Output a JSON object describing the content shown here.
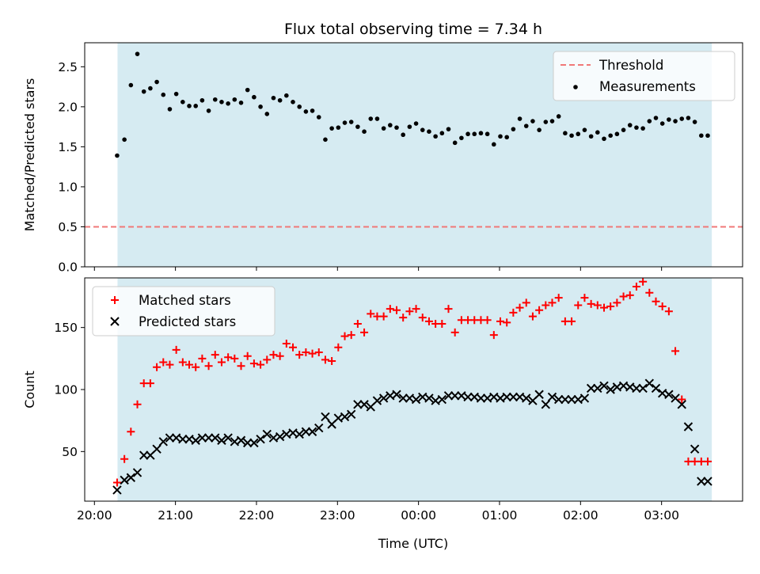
{
  "chart_data": {
    "type": "scatter",
    "title": "Flux total observing time = 7.34 h",
    "xlabel": "Time (UTC)",
    "x_unit": "hours since 20:00 UTC",
    "xlim": [
      -0.12,
      8.0
    ],
    "xticks": [
      {
        "value": 0,
        "label": "20:00"
      },
      {
        "value": 1,
        "label": "21:00"
      },
      {
        "value": 2,
        "label": "22:00"
      },
      {
        "value": 3,
        "label": "23:00"
      },
      {
        "value": 4,
        "label": "00:00"
      },
      {
        "value": 5,
        "label": "01:00"
      },
      {
        "value": 6,
        "label": "02:00"
      },
      {
        "value": 7,
        "label": "03:00"
      }
    ],
    "observing_window": {
      "start": 0.285,
      "end": 7.62,
      "color": "#add8e6"
    },
    "x": [
      0.28,
      0.37,
      0.45,
      0.53,
      0.61,
      0.69,
      0.77,
      0.85,
      0.93,
      1.01,
      1.09,
      1.17,
      1.25,
      1.33,
      1.41,
      1.49,
      1.57,
      1.65,
      1.73,
      1.81,
      1.89,
      1.97,
      2.05,
      2.13,
      2.21,
      2.29,
      2.37,
      2.45,
      2.53,
      2.61,
      2.69,
      2.77,
      2.85,
      2.93,
      3.01,
      3.09,
      3.17,
      3.25,
      3.33,
      3.41,
      3.49,
      3.57,
      3.65,
      3.73,
      3.81,
      3.89,
      3.97,
      4.05,
      4.13,
      4.21,
      4.29,
      4.37,
      4.45,
      4.53,
      4.61,
      4.69,
      4.77,
      4.85,
      4.93,
      5.01,
      5.09,
      5.17,
      5.25,
      5.33,
      5.41,
      5.49,
      5.57,
      5.65,
      5.73,
      5.81,
      5.89,
      5.97,
      6.05,
      6.13,
      6.21,
      6.29,
      6.37,
      6.45,
      6.53,
      6.61,
      6.69,
      6.77,
      6.85,
      6.93,
      7.01,
      7.09,
      7.17,
      7.25,
      7.33,
      7.41,
      7.49,
      7.57
    ],
    "panels": [
      {
        "id": "ratio",
        "ylabel": "Matched/Predicted stars",
        "ylim": [
          0,
          2.8
        ],
        "yticks": [
          {
            "value": 0,
            "label": "0.0"
          },
          {
            "value": 0.5,
            "label": "0.5"
          },
          {
            "value": 1,
            "label": "1.0"
          },
          {
            "value": 1.5,
            "label": "1.5"
          },
          {
            "value": 2,
            "label": "2.0"
          },
          {
            "value": 2.5,
            "label": "2.5"
          }
        ],
        "legend": {
          "position": "upper right",
          "entries": [
            {
              "label": "Threshold",
              "style": "dashed-line",
              "color": "#f07878"
            },
            {
              "label": "Measurements",
              "style": "dot",
              "color": "#000000"
            }
          ]
        },
        "threshold": {
          "label": "Threshold",
          "value": 0.5,
          "color": "#f07878"
        },
        "series": [
          {
            "name": "Measurements",
            "marker": "dot",
            "color": "#000000",
            "values": [
              1.39,
              1.59,
              2.27,
              2.66,
              2.19,
              2.23,
              2.31,
              2.15,
              1.97,
              2.16,
              2.06,
              2.01,
              2.01,
              2.08,
              1.95,
              2.09,
              2.06,
              2.04,
              2.09,
              2.05,
              2.21,
              2.12,
              2.0,
              1.91,
              2.11,
              2.08,
              2.14,
              2.06,
              2.0,
              1.94,
              1.95,
              1.87,
              1.59,
              1.73,
              1.74,
              1.8,
              1.81,
              1.75,
              1.69,
              1.85,
              1.85,
              1.73,
              1.77,
              1.74,
              1.65,
              1.75,
              1.79,
              1.71,
              1.69,
              1.63,
              1.67,
              1.72,
              1.55,
              1.61,
              1.66,
              1.66,
              1.67,
              1.66,
              1.53,
              1.63,
              1.62,
              1.72,
              1.85,
              1.76,
              1.82,
              1.71,
              1.81,
              1.82,
              1.88,
              1.67,
              1.64,
              1.66,
              1.71,
              1.63,
              1.68,
              1.6,
              1.64,
              1.66,
              1.71,
              1.77,
              1.74,
              1.73,
              1.82,
              1.86,
              1.79,
              1.84,
              1.82,
              1.85,
              1.86,
              1.81,
              1.64,
              1.64
            ]
          }
        ]
      },
      {
        "id": "count",
        "ylabel": "Count",
        "ylim": [
          10,
          190
        ],
        "yticks": [
          {
            "value": 50,
            "label": "50"
          },
          {
            "value": 100,
            "label": "100"
          },
          {
            "value": 150,
            "label": "150"
          }
        ],
        "legend": {
          "position": "upper left",
          "entries": [
            {
              "label": "Matched stars",
              "style": "plus",
              "color": "#ff0000"
            },
            {
              "label": "Predicted stars",
              "style": "cross",
              "color": "#000000"
            }
          ]
        },
        "series": [
          {
            "name": "Matched stars",
            "marker": "plus",
            "color": "#ff0000",
            "values": [
              25,
              44,
              66,
              88,
              105,
              105,
              118,
              122,
              120,
              132,
              122,
              120,
              118,
              125,
              119,
              128,
              122,
              126,
              125,
              119,
              127,
              121,
              120,
              124,
              128,
              127,
              137,
              134,
              128,
              130,
              129,
              130,
              124,
              123,
              134,
              143,
              144,
              153,
              146,
              161,
              159,
              159,
              165,
              164,
              158,
              163,
              165,
              158,
              155,
              153,
              153,
              165,
              146,
              156,
              156,
              156,
              156,
              156,
              144,
              155,
              154,
              162,
              166,
              170,
              159,
              164,
              168,
              170,
              174,
              155,
              155,
              168,
              174,
              169,
              168,
              166,
              167,
              170,
              175,
              176,
              183,
              187,
              178,
              171,
              167,
              163,
              131,
              92,
              42,
              42,
              42,
              42
            ]
          },
          {
            "name": "Predicted stars",
            "marker": "cross",
            "color": "#000000",
            "values": [
              19,
              27,
              29,
              33,
              47,
              47,
              52,
              58,
              61,
              61,
              60,
              60,
              59,
              61,
              61,
              61,
              59,
              61,
              58,
              59,
              57,
              57,
              60,
              64,
              61,
              62,
              64,
              65,
              64,
              66,
              66,
              69,
              78,
              72,
              77,
              78,
              80,
              88,
              88,
              86,
              91,
              93,
              95,
              96,
              93,
              93,
              92,
              94,
              93,
              91,
              92,
              95,
              95,
              95,
              94,
              94,
              93,
              93,
              94,
              93,
              94,
              94,
              94,
              93,
              91,
              96,
              88,
              94,
              92,
              92,
              92,
              92,
              93,
              101,
              101,
              103,
              100,
              102,
              103,
              102,
              101,
              101,
              105,
              101,
              97,
              96,
              93,
              88,
              70,
              52,
              26,
              26
            ]
          }
        ]
      }
    ]
  }
}
